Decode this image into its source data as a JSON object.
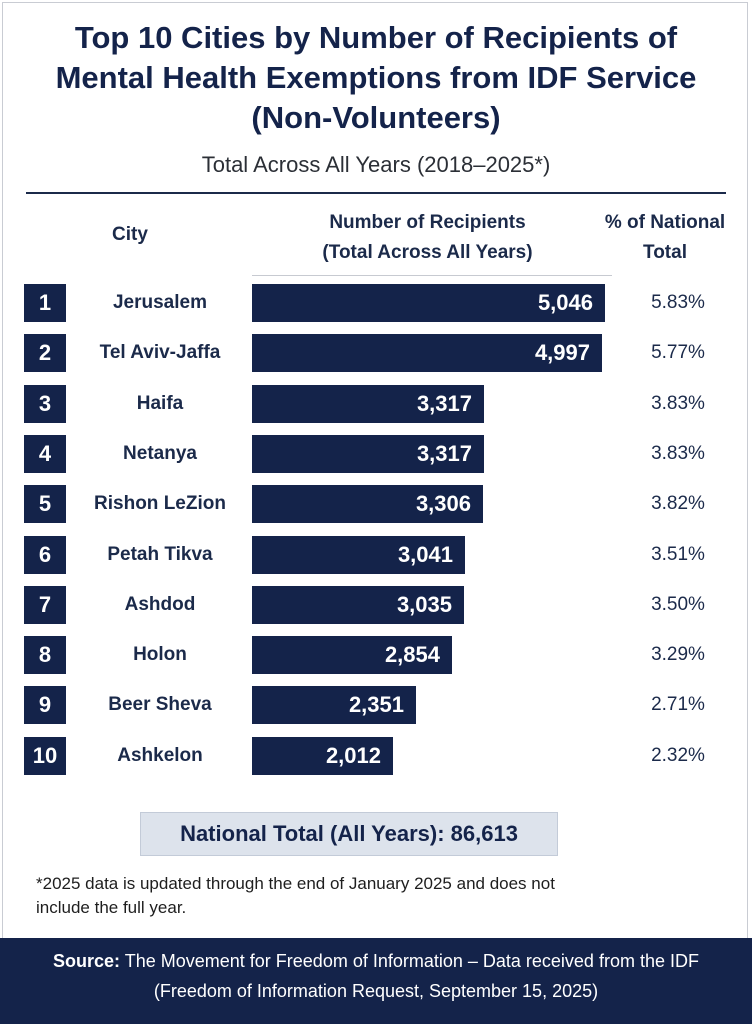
{
  "title_lines": [
    "Top 10 Cities by Number of Recipients of",
    "Mental Health Exemptions from IDF Service",
    "(Non-Volunteers)"
  ],
  "subtitle": "Total Across All Years (2018–2025*)",
  "headers": {
    "city": "City",
    "recipients_line1": "Number of Recipients",
    "recipients_line2": "(Total Across All Years)",
    "pct_line1": "% of National",
    "pct_line2": "Total"
  },
  "chart_data": {
    "type": "bar",
    "orientation": "horizontal",
    "title": "Top 10 Cities by Number of Recipients of Mental Health Exemptions from IDF Service (Non-Volunteers)",
    "subtitle": "Total Across All Years (2018–2025*)",
    "categories": [
      "Jerusalem",
      "Tel Aviv-Jaffa",
      "Haifa",
      "Netanya",
      "Rishon LeZion",
      "Petah Tikva",
      "Ashdod",
      "Holon",
      "Beer Sheva",
      "Ashkelon"
    ],
    "ranks": [
      "1",
      "2",
      "3",
      "4",
      "5",
      "6",
      "7",
      "8",
      "9",
      "10"
    ],
    "values": [
      5046,
      4997,
      3317,
      3317,
      3306,
      3041,
      3035,
      2854,
      2351,
      2012
    ],
    "value_labels": [
      "5,046",
      "4,997",
      "3,317",
      "3,317",
      "3,306",
      "3,041",
      "3,035",
      "2,854",
      "2,351",
      "2,012"
    ],
    "percent_labels": [
      "5.83%",
      "5.77%",
      "3.83%",
      "3.83%",
      "3.82%",
      "3.51%",
      "3.50%",
      "3.29%",
      "2.71%",
      "2.32%"
    ],
    "bar_color": "#14234a"
  },
  "national_total": "National Total (All Years): 86,613",
  "footnote_lines": [
    "*2025 data is updated through the end of January 2025 and does not",
    "include the full year."
  ],
  "source": {
    "label": "Source:",
    "line1": "The Movement for Freedom of Information – Data received from the IDF",
    "line2": "(Freedom of Information Request, September 15, 2025)"
  },
  "colors": {
    "navy": "#14234a",
    "total_box_bg": "#dde3ec"
  }
}
